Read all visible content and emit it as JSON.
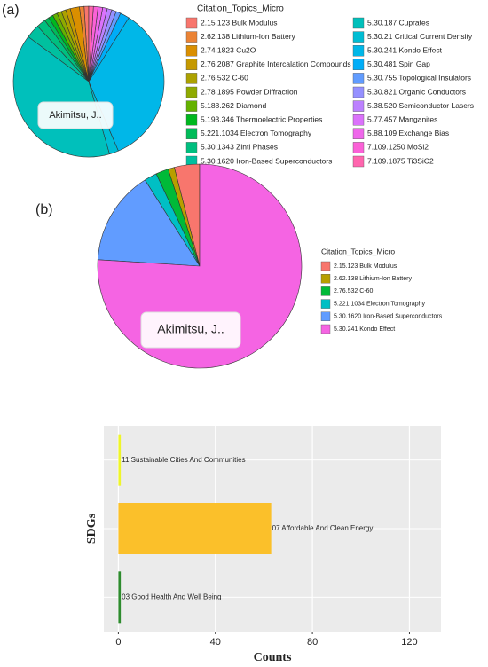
{
  "chart_data": [
    {
      "type": "pie",
      "panel_label": "(a)",
      "annotation": "Akimitsu, J..",
      "legend_title": "Citation_Topics_Micro",
      "categories": [
        "2.15.123 Bulk Modulus",
        "2.62.138 Lithium-Ion Battery",
        "2.74.1823 Cu2O",
        "2.76.2087 Graphite Intercalation Compounds",
        "2.76.532 C-60",
        "2.78.1895 Powder Diffraction",
        "5.188.262 Diamond",
        "5.193.346 Thermoelectric Properties",
        "5.221.1034 Electron Tomography",
        "5.30.1343 Zintl Phases",
        "5.30.1620 Iron-Based Superconductors",
        "5.30.187 Cuprates",
        "5.30.21 Critical Current Density",
        "5.30.241 Kondo Effect",
        "5.30.481 Spin Gap",
        "5.30.755 Topological Insulators",
        "5.30.821 Organic Conductors",
        "5.38.520 Semiconductor Lasers",
        "5.77.457 Manganites",
        "5.88.109 Exchange Bias",
        "7.109.1250 MoSi2",
        "7.109.1875 Ti3SiC2"
      ],
      "values": [
        1,
        1,
        2,
        1,
        1,
        1,
        1,
        1,
        1,
        2,
        3,
        40,
        2,
        35,
        2,
        1,
        1,
        1,
        1,
        1,
        1,
        1
      ],
      "colors": [
        "#F8766D",
        "#EB8335",
        "#DA8F00",
        "#C59900",
        "#ADA200",
        "#8FAA00",
        "#64B200",
        "#00B81F",
        "#00BC59",
        "#00BF7F",
        "#00C09F",
        "#00C0BB",
        "#00BDD4",
        "#00B7E8",
        "#00ADF8",
        "#619CFF",
        "#9590FF",
        "#BC81FF",
        "#DB72FB",
        "#EF67EB",
        "#FB61D7",
        "#FF65AE"
      ]
    },
    {
      "type": "pie",
      "panel_label": "(b)",
      "annotation": "Akimitsu, J..",
      "legend_title": "Citation_Topics_Micro",
      "categories": [
        "2.15.123 Bulk Modulus",
        "2.62.138 Lithium-Ion Battery",
        "2.76.532 C-60",
        "5.221.1034 Electron Tomography",
        "5.30.1620 Iron-Based Superconductors",
        "5.30.241 Kondo Effect"
      ],
      "values": [
        4,
        1,
        2,
        2,
        15,
        76
      ],
      "colors": [
        "#F8766D",
        "#B79F00",
        "#00BA38",
        "#00BFC4",
        "#619CFF",
        "#F564E3"
      ]
    },
    {
      "type": "bar",
      "orientation": "horizontal",
      "xlabel": "Counts",
      "ylabel": "SDGs",
      "categories": [
        "03 Good Health And Well Being",
        "07 Affordable And Clean Energy",
        "11 Sustainable Cities And Communities"
      ],
      "values": [
        1,
        63,
        1
      ],
      "colors": [
        "#2E8B2E",
        "#FBC02A",
        "#EEF52A"
      ],
      "xlim": [
        -6,
        133
      ],
      "xticks": [
        0,
        40,
        80,
        120
      ],
      "grid": true
    }
  ]
}
